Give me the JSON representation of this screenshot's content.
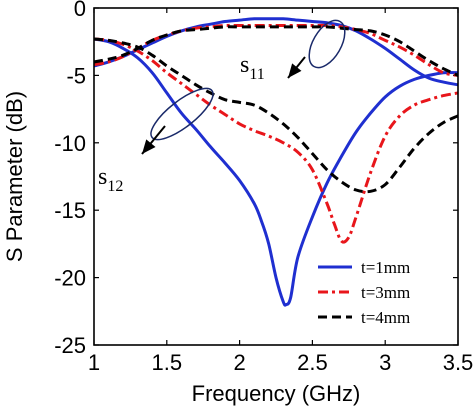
{
  "chart_data": {
    "type": "line",
    "title": "",
    "xlabel": "Frequency (GHz)",
    "ylabel": "S Parameter (dB)",
    "xlim": [
      1,
      3.5
    ],
    "ylim": [
      -25,
      0
    ],
    "xticks": [
      1,
      1.5,
      2,
      2.5,
      3,
      3.5
    ],
    "xtick_labels": [
      "1",
      "1.5",
      "2",
      "2.5",
      "3",
      "3.5"
    ],
    "yticks": [
      0,
      -5,
      -10,
      -15,
      -20,
      -25
    ],
    "ytick_labels": [
      "0",
      "-5",
      "-10",
      "-15",
      "-20",
      "-25"
    ],
    "grid": false,
    "legend_position": "bottom-right",
    "annotations": [
      {
        "id": "s11",
        "base": "s",
        "sub": "11"
      },
      {
        "id": "s12",
        "base": "s",
        "sub": "12"
      }
    ],
    "series": [
      {
        "name": "t=1mm",
        "parameter": "s12",
        "color": "#1f2fd0",
        "style": "solid",
        "x": [
          1.0,
          1.1,
          1.2,
          1.3,
          1.4,
          1.5,
          1.6,
          1.7,
          1.8,
          1.9,
          2.0,
          2.1,
          2.15,
          2.2,
          2.25,
          2.3,
          2.32,
          2.35,
          2.4,
          2.5,
          2.6,
          2.7,
          2.8,
          2.9,
          3.0,
          3.1,
          3.2,
          3.3,
          3.4,
          3.5
        ],
        "y": [
          -2.3,
          -2.5,
          -3.0,
          -3.7,
          -4.8,
          -6.3,
          -7.8,
          -9.0,
          -10.3,
          -11.5,
          -12.8,
          -14.5,
          -15.8,
          -17.5,
          -20.0,
          -21.8,
          -22.0,
          -21.5,
          -18.5,
          -15.5,
          -13.0,
          -11.0,
          -9.2,
          -7.8,
          -6.6,
          -5.8,
          -5.3,
          -5.0,
          -4.8,
          -4.8
        ]
      },
      {
        "name": "t=1mm",
        "parameter": "s11",
        "color": "#1f2fd0",
        "style": "solid",
        "x": [
          1.0,
          1.1,
          1.2,
          1.3,
          1.4,
          1.5,
          1.6,
          1.7,
          1.8,
          1.9,
          2.0,
          2.1,
          2.2,
          2.3,
          2.4,
          2.5,
          2.6,
          2.7,
          2.8,
          2.9,
          3.0,
          3.1,
          3.2,
          3.3,
          3.4,
          3.5
        ],
        "y": [
          -4.3,
          -4.0,
          -3.6,
          -3.1,
          -2.6,
          -2.1,
          -1.7,
          -1.4,
          -1.2,
          -1.0,
          -0.9,
          -0.8,
          -0.8,
          -0.8,
          -0.9,
          -1.0,
          -1.1,
          -1.3,
          -1.7,
          -2.3,
          -3.0,
          -3.8,
          -4.6,
          -5.2,
          -5.5,
          -5.7
        ]
      },
      {
        "name": "t=3mm",
        "parameter": "s12",
        "color": "#e8161b",
        "style": "dashdot",
        "x": [
          1.0,
          1.1,
          1.2,
          1.3,
          1.4,
          1.5,
          1.6,
          1.7,
          1.8,
          1.9,
          2.0,
          2.1,
          2.2,
          2.3,
          2.4,
          2.5,
          2.6,
          2.65,
          2.7,
          2.75,
          2.8,
          2.9,
          3.0,
          3.1,
          3.2,
          3.3,
          3.4,
          3.5
        ],
        "y": [
          -2.3,
          -2.4,
          -2.7,
          -3.2,
          -3.9,
          -4.8,
          -5.6,
          -6.4,
          -7.2,
          -7.9,
          -8.6,
          -9.1,
          -9.5,
          -10.0,
          -10.7,
          -12.0,
          -14.5,
          -16.0,
          -17.3,
          -17.0,
          -15.5,
          -12.2,
          -9.5,
          -8.0,
          -7.2,
          -6.8,
          -6.5,
          -6.3
        ]
      },
      {
        "name": "t=3mm",
        "parameter": "s11",
        "color": "#e8161b",
        "style": "dashdot",
        "x": [
          1.0,
          1.1,
          1.2,
          1.3,
          1.4,
          1.5,
          1.6,
          1.7,
          1.8,
          1.9,
          2.0,
          2.1,
          2.2,
          2.3,
          2.4,
          2.5,
          2.6,
          2.7,
          2.8,
          2.9,
          3.0,
          3.1,
          3.2,
          3.3,
          3.4,
          3.5
        ],
        "y": [
          -4.2,
          -4.0,
          -3.6,
          -3.0,
          -2.4,
          -2.0,
          -1.7,
          -1.5,
          -1.4,
          -1.3,
          -1.3,
          -1.3,
          -1.3,
          -1.3,
          -1.3,
          -1.3,
          -1.3,
          -1.4,
          -1.6,
          -1.9,
          -2.4,
          -2.9,
          -3.5,
          -4.2,
          -4.8,
          -5.0
        ]
      },
      {
        "name": "t=4mm",
        "parameter": "s12",
        "color": "#000000",
        "style": "dashed",
        "x": [
          1.0,
          1.1,
          1.2,
          1.3,
          1.4,
          1.5,
          1.6,
          1.7,
          1.8,
          1.9,
          2.0,
          2.1,
          2.2,
          2.3,
          2.4,
          2.5,
          2.6,
          2.7,
          2.8,
          2.9,
          3.0,
          3.1,
          3.2,
          3.3,
          3.4,
          3.5
        ],
        "y": [
          -2.3,
          -2.4,
          -2.6,
          -2.9,
          -3.5,
          -4.3,
          -5.0,
          -5.7,
          -6.3,
          -6.8,
          -7.0,
          -7.2,
          -7.8,
          -8.6,
          -9.6,
          -10.8,
          -12.0,
          -12.9,
          -13.5,
          -13.6,
          -13.1,
          -11.8,
          -10.4,
          -9.3,
          -8.5,
          -8.0
        ]
      },
      {
        "name": "t=4mm",
        "parameter": "s11",
        "color": "#000000",
        "style": "dashed",
        "x": [
          1.0,
          1.1,
          1.2,
          1.3,
          1.4,
          1.5,
          1.6,
          1.7,
          1.8,
          1.9,
          2.0,
          2.1,
          2.2,
          2.3,
          2.4,
          2.5,
          2.6,
          2.7,
          2.8,
          2.9,
          3.0,
          3.1,
          3.2,
          3.3,
          3.4,
          3.5
        ],
        "y": [
          -4.0,
          -3.8,
          -3.5,
          -3.0,
          -2.4,
          -2.0,
          -1.7,
          -1.6,
          -1.5,
          -1.4,
          -1.4,
          -1.4,
          -1.4,
          -1.4,
          -1.4,
          -1.4,
          -1.4,
          -1.5,
          -1.6,
          -1.7,
          -2.0,
          -2.5,
          -3.2,
          -3.9,
          -4.5,
          -5.0
        ]
      }
    ]
  }
}
